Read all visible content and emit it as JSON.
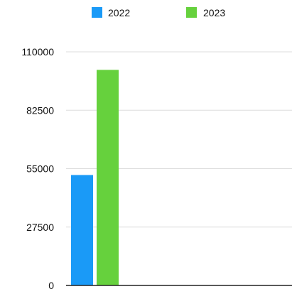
{
  "chart_data": {
    "type": "bar",
    "categories": [
      ""
    ],
    "series": [
      {
        "name": "2022",
        "values": [
          52000
        ],
        "color": "#1a9af7"
      },
      {
        "name": "2023",
        "values": [
          101500
        ],
        "color": "#66d13d"
      }
    ],
    "title": "",
    "xlabel": "",
    "ylabel": "",
    "ylim": [
      0,
      110000
    ],
    "yticks": [
      0,
      27500,
      55000,
      82500,
      110000
    ],
    "ytick_labels": [
      "0",
      "27500",
      "55000",
      "82500",
      "110000"
    ],
    "grid": true,
    "legend_position": "top"
  }
}
